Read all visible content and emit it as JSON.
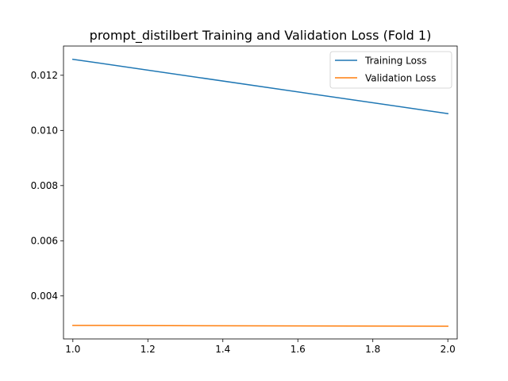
{
  "chart_data": {
    "type": "line",
    "title": "prompt_distilbert Training and Validation Loss (Fold 1)",
    "xlabel": "",
    "ylabel": "",
    "xlim": [
      0.975,
      2.025
    ],
    "ylim": [
      0.00244,
      0.01306
    ],
    "xticks": [
      1.0,
      1.2,
      1.4,
      1.6,
      1.8,
      2.0
    ],
    "xtick_labels": [
      "1.0",
      "1.2",
      "1.4",
      "1.6",
      "1.8",
      "2.0"
    ],
    "yticks": [
      0.004,
      0.006,
      0.008,
      0.01,
      0.012
    ],
    "ytick_labels": [
      "0.004",
      "0.006",
      "0.008",
      "0.010",
      "0.012"
    ],
    "grid": false,
    "legend": "top-right",
    "series": [
      {
        "name": "Training Loss",
        "color": "#1f77b4",
        "x": [
          1.0,
          2.0
        ],
        "y": [
          0.01258,
          0.01061
        ]
      },
      {
        "name": "Validation Loss",
        "color": "#ff7f0e",
        "x": [
          1.0,
          2.0
        ],
        "y": [
          0.00293,
          0.0029
        ]
      }
    ]
  }
}
